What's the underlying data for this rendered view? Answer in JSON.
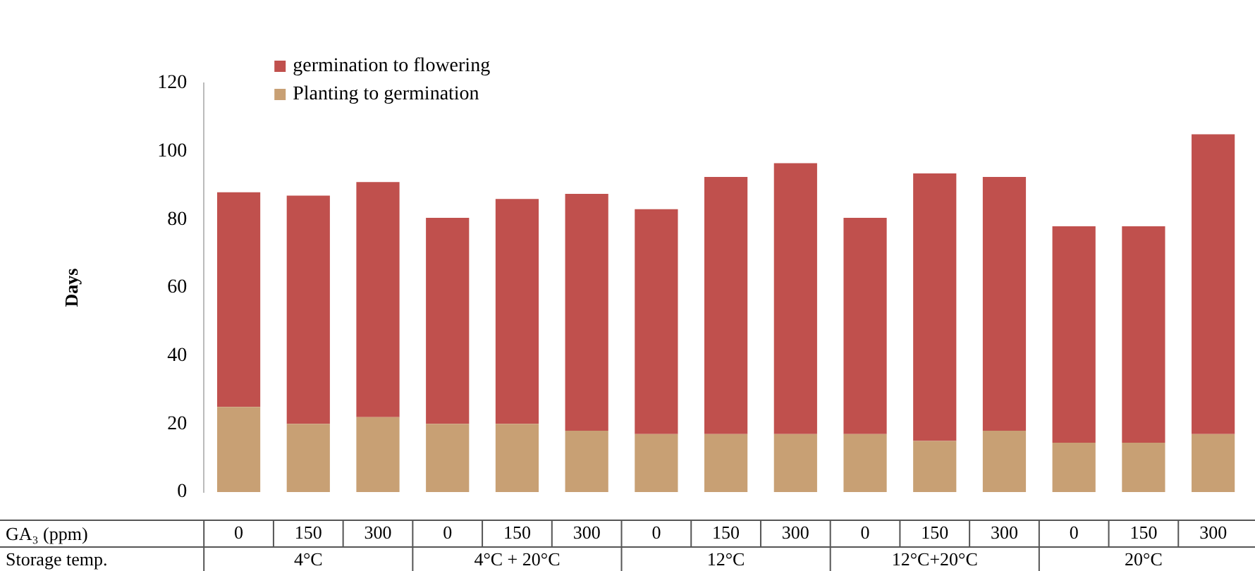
{
  "chart_data": {
    "type": "bar",
    "stacked": true,
    "ylabel": "Days",
    "xlabel": "GA₃ (ppm)",
    "categories": [
      "0",
      "150",
      "300",
      "0",
      "150",
      "300",
      "0",
      "150",
      "300",
      "0",
      "150",
      "300",
      "0",
      "150",
      "300"
    ],
    "series": [
      {
        "name": "Planting to germination",
        "color": "#c8a074",
        "values": [
          25,
          20,
          22,
          20,
          20,
          18,
          17,
          17,
          17,
          17,
          15,
          18,
          14.5,
          14.5,
          17
        ]
      },
      {
        "name": "germination to flowering",
        "color": "#c0504d",
        "values": [
          63,
          67,
          69,
          60.5,
          66,
          69.5,
          66,
          75.5,
          79.5,
          63.5,
          78.5,
          74.5,
          63.5,
          63.5,
          88
        ]
      }
    ],
    "ylim": [
      0,
      120
    ],
    "yticks": [
      0,
      20,
      40,
      60,
      80,
      100,
      120
    ],
    "legend": "top",
    "annotations": [
      "Storage temp.",
      "4°C",
      "4°C + 20°C",
      "12°C",
      "12°C+20°C",
      "20°C"
    ]
  }
}
